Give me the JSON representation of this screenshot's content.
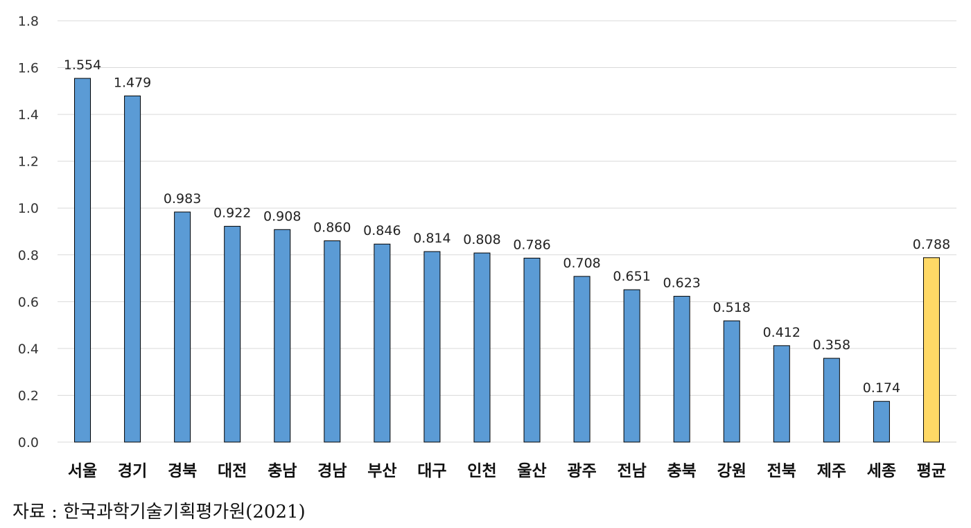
{
  "chart_data": {
    "type": "bar",
    "categories": [
      "서울",
      "경기",
      "경북",
      "대전",
      "충남",
      "경남",
      "부산",
      "대구",
      "인천",
      "울산",
      "광주",
      "전남",
      "충북",
      "강원",
      "전북",
      "제주",
      "세종",
      "평균"
    ],
    "values": [
      1.554,
      1.479,
      0.983,
      0.922,
      0.908,
      0.86,
      0.846,
      0.814,
      0.808,
      0.786,
      0.708,
      0.651,
      0.623,
      0.518,
      0.412,
      0.358,
      0.174,
      0.788
    ],
    "value_labels": [
      "1.554",
      "1.479",
      "0.983",
      "0.922",
      "0.908",
      "0.860",
      "0.846",
      "0.814",
      "0.808",
      "0.786",
      "0.708",
      "0.651",
      "0.623",
      "0.518",
      "0.412",
      "0.358",
      "0.174",
      "0.788"
    ],
    "ylim": [
      0,
      1.8
    ],
    "yticks": [
      "0.0",
      "0.2",
      "0.4",
      "0.6",
      "0.8",
      "1.0",
      "1.2",
      "1.4",
      "1.6",
      "1.8"
    ],
    "grid": true,
    "legend": "none",
    "colors": {
      "bar": "#5b9bd5",
      "highlight": "#ffd966",
      "border": "#000000",
      "grid": "#d9d9d9"
    },
    "highlight_category": "평균"
  },
  "source_note": "자료 : 한국과학기술기획평가원(2021)"
}
